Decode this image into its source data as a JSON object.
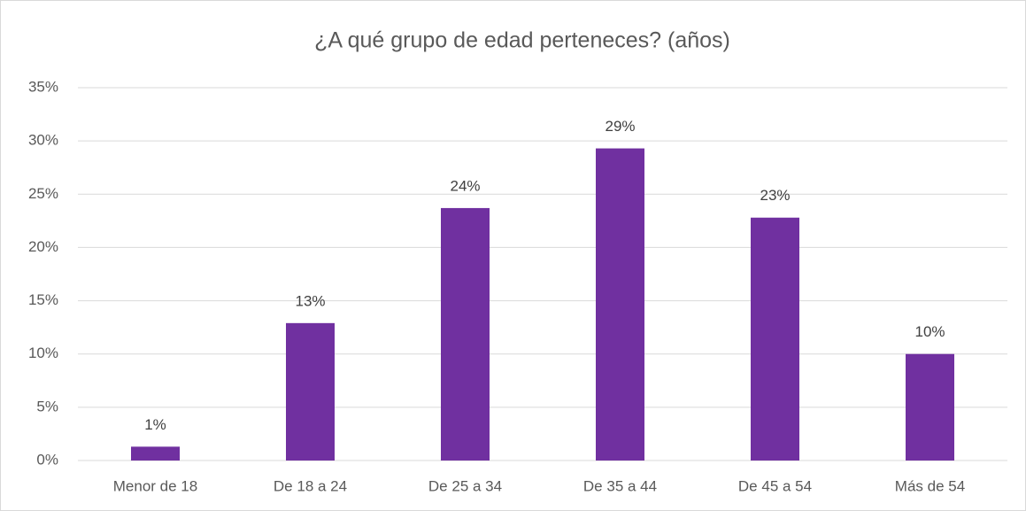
{
  "chart_data": {
    "type": "bar",
    "title": "¿A qué grupo de edad perteneces? (años)",
    "categories": [
      "Menor de 18",
      "De 18 a 24",
      "De 25 a 34",
      "De 35 a 44",
      "De 45 a 54",
      "Más de 54"
    ],
    "values": [
      1.3,
      12.9,
      23.7,
      29.3,
      22.8,
      10.0
    ],
    "value_labels": [
      "1%",
      "13%",
      "24%",
      "29%",
      "23%",
      "10%"
    ],
    "color": "#7030a0",
    "ylim": [
      0,
      35
    ],
    "yticks": [
      {
        "value": 0,
        "label": "0%"
      },
      {
        "value": 5,
        "label": "5%"
      },
      {
        "value": 10,
        "label": "10%"
      },
      {
        "value": 15,
        "label": "15%"
      },
      {
        "value": 20,
        "label": "20%"
      },
      {
        "value": 25,
        "label": "25%"
      },
      {
        "value": 30,
        "label": "30%"
      },
      {
        "value": 35,
        "label": "35%"
      }
    ],
    "grid": true
  }
}
